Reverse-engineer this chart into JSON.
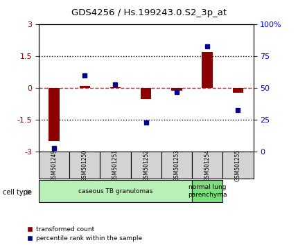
{
  "title": "GDS4256 / Hs.199243.0.S2_3p_at",
  "samples": [
    "GSM501249",
    "GSM501250",
    "GSM501251",
    "GSM501252",
    "GSM501253",
    "GSM501254",
    "GSM501255"
  ],
  "red_values": [
    -2.5,
    0.1,
    0.05,
    -0.5,
    -0.1,
    1.7,
    -0.2
  ],
  "blue_values": [
    3,
    60,
    53,
    23,
    47,
    83,
    33
  ],
  "ylim_left": [
    -3,
    3
  ],
  "ylim_right": [
    0,
    100
  ],
  "yticks_left": [
    -3,
    -1.5,
    0,
    1.5,
    3
  ],
  "ytick_labels_left": [
    "-3",
    "-1.5",
    "0",
    "1.5",
    "3"
  ],
  "yticks_right": [
    0,
    25,
    50,
    75,
    100
  ],
  "ytick_labels_right": [
    "0",
    "25",
    "50",
    "75",
    "100%"
  ],
  "hlines": [
    0,
    1.5,
    -1.5
  ],
  "hline_styles": [
    "dashed-red",
    "dotted-black",
    "dotted-black"
  ],
  "cell_type_groups": [
    {
      "label": "caseous TB granulomas",
      "start": 0,
      "end": 5,
      "color": "#b8f0b8"
    },
    {
      "label": "normal lung\nparenchyma",
      "start": 5,
      "end": 6,
      "color": "#7be07b"
    }
  ],
  "cell_type_label": "cell type",
  "legend_red": "transformed count",
  "legend_blue": "percentile rank within the sample",
  "red_color": "#8b0000",
  "blue_color": "#00008b",
  "bar_width": 0.35
}
